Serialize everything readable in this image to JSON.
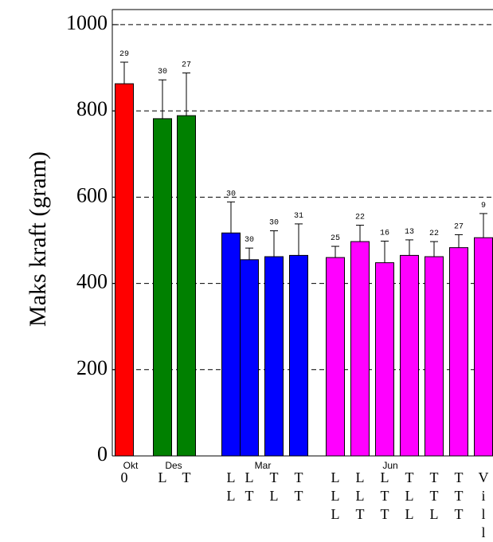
{
  "chart_data": {
    "type": "bar",
    "y_label": "Maks kraft (gram)",
    "ylim": [
      0,
      1035
    ],
    "yticks": [
      0,
      200,
      400,
      600,
      800,
      1000
    ],
    "grid": true,
    "groups": [
      {
        "name": "Okt",
        "color": "#ff0000",
        "categories": [
          "0"
        ],
        "values": [
          863
        ],
        "errors": [
          50
        ],
        "counts": [
          29
        ]
      },
      {
        "name": "Des",
        "color": "#008000",
        "categories": [
          "L",
          "T"
        ],
        "values": [
          782,
          789
        ],
        "errors": [
          90,
          99
        ],
        "counts": [
          30,
          27
        ]
      },
      {
        "name": "Mar",
        "color": "#0000ff",
        "categories": [
          "LL",
          "LT",
          "TL",
          "TT"
        ],
        "values": [
          517,
          455,
          462,
          465
        ],
        "errors": [
          72,
          27,
          60,
          73
        ],
        "counts": [
          30,
          30,
          30,
          31
        ]
      },
      {
        "name": "Jun",
        "color": "#ff00ff",
        "categories": [
          "LLL",
          "LLT",
          "LTT",
          "TLL",
          "TTL",
          "TTT",
          "Vill"
        ],
        "values": [
          460,
          497,
          448,
          465,
          462,
          483,
          506
        ],
        "errors": [
          26,
          38,
          50,
          36,
          35,
          30,
          56
        ],
        "counts": [
          25,
          22,
          16,
          13,
          22,
          27,
          9
        ]
      }
    ]
  }
}
